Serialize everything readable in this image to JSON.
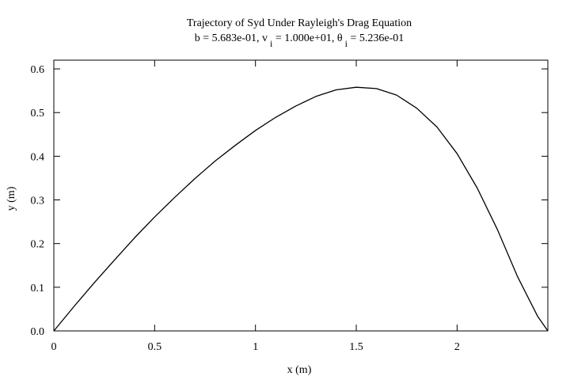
{
  "chart_data": {
    "type": "line",
    "title": "Trajectory of Syd Under Rayleigh's Drag Equation",
    "subtitle": "b = 5.683e-01, v<sub>i</sub> = 1.000e+01, θ<sub>i</sub> = 5.236e-01",
    "subtitle_parts": [
      {
        "text": "b = 5.683e-01, v",
        "sub": false
      },
      {
        "text": "i",
        "sub": true
      },
      {
        "text": " = 1.000e+01,  θ",
        "sub": false
      },
      {
        "text": "i",
        "sub": true
      },
      {
        "text": " = 5.236e-01",
        "sub": false
      }
    ],
    "xlabel": "x (m)",
    "ylabel": "y (m)",
    "xlim": [
      0,
      2.45
    ],
    "ylim": [
      0,
      0.62
    ],
    "xticks": [
      0,
      0.5,
      1,
      1.5,
      2
    ],
    "xtick_labels": [
      "0",
      "0.5",
      "1",
      "1.5",
      "2"
    ],
    "yticks": [
      0.0,
      0.1,
      0.2,
      0.3,
      0.4,
      0.5,
      0.6
    ],
    "ytick_labels": [
      "0.0",
      "0.1",
      "0.2",
      "0.3",
      "0.4",
      "0.5",
      "0.6"
    ],
    "grid": false,
    "line_color": "#000000",
    "series": [
      {
        "x": [
          0,
          0.1,
          0.2,
          0.3,
          0.4,
          0.5,
          0.6,
          0.7,
          0.8,
          0.9,
          1.0,
          1.1,
          1.2,
          1.3,
          1.4,
          1.5,
          1.6,
          1.7,
          1.8,
          1.9,
          2.0,
          2.1,
          2.2,
          2.3,
          2.4,
          2.45
        ],
        "y": [
          0,
          0.056,
          0.11,
          0.162,
          0.213,
          0.261,
          0.306,
          0.349,
          0.389,
          0.425,
          0.459,
          0.489,
          0.515,
          0.537,
          0.552,
          0.558,
          0.555,
          0.54,
          0.51,
          0.467,
          0.406,
          0.327,
          0.232,
          0.124,
          0.033,
          0.0
        ]
      }
    ]
  }
}
